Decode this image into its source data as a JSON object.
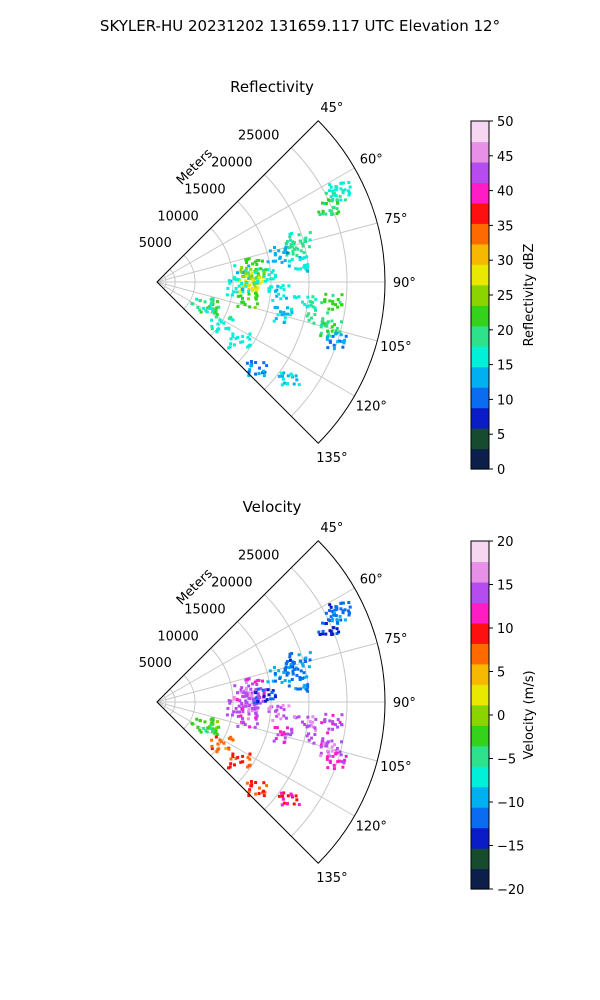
{
  "figure": {
    "title": "SKYLER-HU  20231202  131659.117 UTC Elevation 12°"
  },
  "chart_data": [
    {
      "type": "scatter",
      "title": "Reflectivity",
      "projection": "polar-sector",
      "angle_range_deg": [
        45,
        135
      ],
      "angle_ticks": [
        "45°",
        "60°",
        "75°",
        "90°",
        "105°",
        "120°",
        "135°"
      ],
      "radial_label": "Meters",
      "radial_ticks": [
        "5000",
        "10000",
        "15000",
        "20000",
        "25000"
      ],
      "r_max": 30000,
      "grid": true,
      "colorbar": {
        "label": "Reflectivity dBZ",
        "range": [
          0,
          50
        ],
        "ticks": [
          "0",
          "5",
          "10",
          "15",
          "20",
          "25",
          "30",
          "35",
          "40",
          "45",
          "50"
        ],
        "colors": [
          "#0b1f4a",
          "#164b2f",
          "#0a1cc8",
          "#0a6cf0",
          "#00b0f0",
          "#00f0d8",
          "#2de28a",
          "#34d21a",
          "#8bd400",
          "#e8e800",
          "#f6b800",
          "#ff6a00",
          "#ff1010",
          "#ff1cc4",
          "#b44cf0",
          "#e890e8",
          "#f6d6f0"
        ]
      },
      "points": [
        {
          "theta": 64,
          "r": 26000,
          "v": 18
        },
        {
          "theta": 62.5,
          "r": 27000,
          "v": 16
        },
        {
          "theta": 66,
          "r": 24500,
          "v": 21
        },
        {
          "theta": 73,
          "r": 19500,
          "v": 18
        },
        {
          "theta": 75.5,
          "r": 18500,
          "v": 19
        },
        {
          "theta": 76.5,
          "r": 16000,
          "v": 13
        },
        {
          "theta": 82,
          "r": 18500,
          "v": 16
        },
        {
          "theta": 80,
          "r": 13000,
          "v": 22
        },
        {
          "theta": 83,
          "r": 11000,
          "v": 15
        },
        {
          "theta": 84.5,
          "r": 12000,
          "v": 26
        },
        {
          "theta": 88,
          "r": 12500,
          "v": 27
        },
        {
          "theta": 90.5,
          "r": 12000,
          "v": 28
        },
        {
          "theta": 86,
          "r": 14000,
          "v": 17
        },
        {
          "theta": 93,
          "r": 10500,
          "v": 16
        },
        {
          "theta": 94.5,
          "r": 16000,
          "v": 15
        },
        {
          "theta": 96,
          "r": 23000,
          "v": 22
        },
        {
          "theta": 98,
          "r": 19500,
          "v": 17
        },
        {
          "theta": 100.5,
          "r": 12000,
          "v": 23
        },
        {
          "theta": 103,
          "r": 21500,
          "v": 19
        },
        {
          "theta": 104.5,
          "r": 23500,
          "v": 20
        },
        {
          "theta": 104,
          "r": 17000,
          "v": 14
        },
        {
          "theta": 108,
          "r": 24500,
          "v": 12
        },
        {
          "theta": 114,
          "r": 7500,
          "v": 21
        },
        {
          "theta": 116,
          "r": 6500,
          "v": 18
        },
        {
          "theta": 123,
          "r": 10000,
          "v": 17
        },
        {
          "theta": 125,
          "r": 13000,
          "v": 16
        },
        {
          "theta": 126.5,
          "r": 21500,
          "v": 15
        },
        {
          "theta": 131,
          "r": 17000,
          "v": 12
        }
      ]
    },
    {
      "type": "scatter",
      "title": "Velocity",
      "projection": "polar-sector",
      "angle_range_deg": [
        45,
        135
      ],
      "angle_ticks": [
        "45°",
        "60°",
        "75°",
        "90°",
        "105°",
        "120°",
        "135°"
      ],
      "radial_label": "Meters",
      "radial_ticks": [
        "5000",
        "10000",
        "15000",
        "20000",
        "25000"
      ],
      "r_max": 30000,
      "grid": true,
      "colorbar": {
        "label": "Velocity (m/s)",
        "range": [
          -20,
          20
        ],
        "ticks": [
          "−20",
          "−15",
          "−10",
          "−5",
          "0",
          "5",
          "10",
          "15",
          "20"
        ],
        "colors": [
          "#0b1f4a",
          "#164b2f",
          "#0a1cc8",
          "#0a6cf0",
          "#00b0f0",
          "#00f0d8",
          "#2de28a",
          "#34d21a",
          "#8bd400",
          "#e8e800",
          "#f6b800",
          "#ff6a00",
          "#ff1010",
          "#ff1cc4",
          "#b44cf0",
          "#e890e8",
          "#f6d6f0"
        ]
      },
      "points": [
        {
          "theta": 64,
          "r": 26000,
          "v": -11
        },
        {
          "theta": 62.5,
          "r": 27000,
          "v": -12
        },
        {
          "theta": 66,
          "r": 24500,
          "v": -13
        },
        {
          "theta": 73,
          "r": 19500,
          "v": -11
        },
        {
          "theta": 75.5,
          "r": 18500,
          "v": -12
        },
        {
          "theta": 76.5,
          "r": 16000,
          "v": -11
        },
        {
          "theta": 82,
          "r": 18500,
          "v": -11
        },
        {
          "theta": 80,
          "r": 13000,
          "v": 14
        },
        {
          "theta": 83,
          "r": 11000,
          "v": 15
        },
        {
          "theta": 84.5,
          "r": 12000,
          "v": 15
        },
        {
          "theta": 88,
          "r": 12500,
          "v": 14
        },
        {
          "theta": 90.5,
          "r": 12000,
          "v": 15
        },
        {
          "theta": 86,
          "r": 14000,
          "v": -13
        },
        {
          "theta": 93,
          "r": 10500,
          "v": 14
        },
        {
          "theta": 94.5,
          "r": 16000,
          "v": 15
        },
        {
          "theta": 96,
          "r": 23000,
          "v": 14
        },
        {
          "theta": 98,
          "r": 19500,
          "v": 15
        },
        {
          "theta": 100.5,
          "r": 12000,
          "v": 14
        },
        {
          "theta": 103,
          "r": 21500,
          "v": 14
        },
        {
          "theta": 104.5,
          "r": 23500,
          "v": 15
        },
        {
          "theta": 104,
          "r": 17000,
          "v": 13
        },
        {
          "theta": 108,
          "r": 24500,
          "v": 12
        },
        {
          "theta": 114,
          "r": 7500,
          "v": -2
        },
        {
          "theta": 116,
          "r": 6500,
          "v": -3
        },
        {
          "theta": 123,
          "r": 10000,
          "v": 7
        },
        {
          "theta": 125,
          "r": 13000,
          "v": 8
        },
        {
          "theta": 126.5,
          "r": 21500,
          "v": 11
        },
        {
          "theta": 131,
          "r": 17000,
          "v": 9
        }
      ]
    }
  ]
}
